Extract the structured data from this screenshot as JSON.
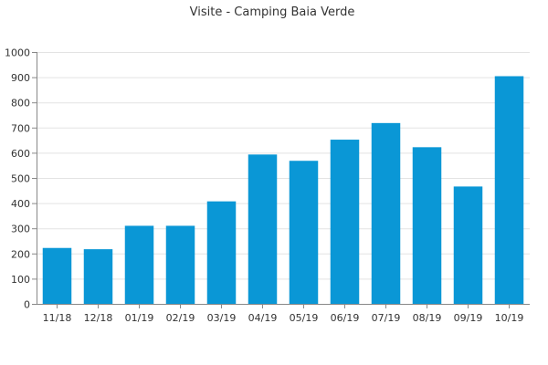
{
  "chart_data": {
    "type": "bar",
    "title": "Visite - Camping Baia Verde",
    "xlabel": "",
    "ylabel": "",
    "categories": [
      "11/18",
      "12/18",
      "01/19",
      "02/19",
      "03/19",
      "04/19",
      "05/19",
      "06/19",
      "07/19",
      "08/19",
      "09/19",
      "10/19"
    ],
    "series": [
      {
        "values": [
          222,
          217,
          310,
          310,
          407,
          593,
          568,
          652,
          718,
          622,
          466,
          904
        ],
        "color": "#0a97d6"
      }
    ],
    "ylim": [
      0,
      1000
    ],
    "yticks": [
      0,
      100,
      200,
      300,
      400,
      500,
      600,
      700,
      800,
      900,
      1000
    ],
    "grid": true,
    "legend": "none"
  }
}
